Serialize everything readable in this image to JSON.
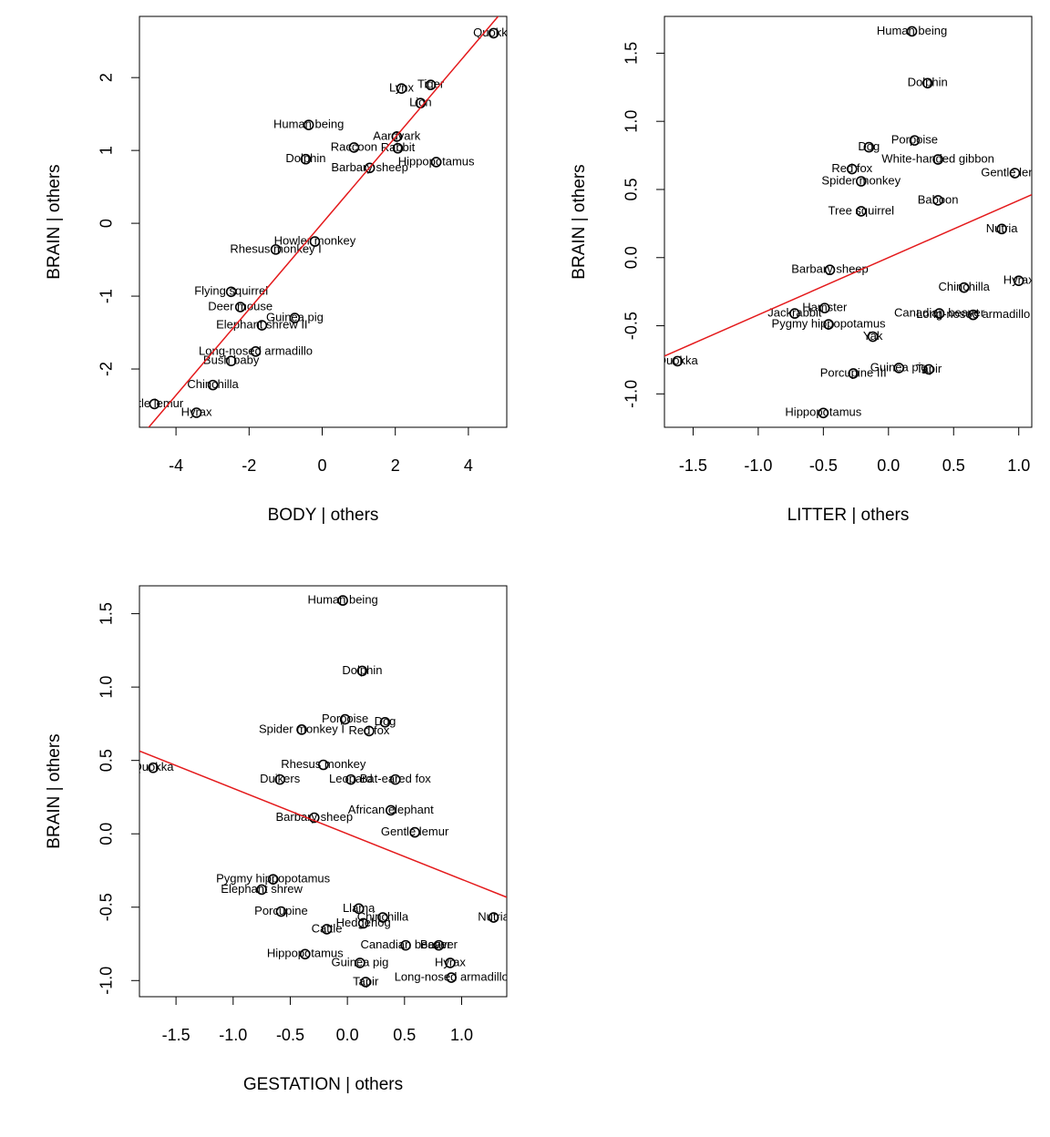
{
  "chart_data": [
    {
      "type": "scatter",
      "x_label": "BODY | others",
      "y_label": "BRAIN | others",
      "xlim": [
        -5.0,
        5.05
      ],
      "ylim": [
        -2.8,
        2.84
      ],
      "xticks": [
        -4,
        -2,
        0,
        2,
        4
      ],
      "yticks": [
        -2,
        -1,
        0,
        1,
        2
      ],
      "fit": {
        "slope": 0.59,
        "intercept": 0,
        "color": "#e41a1c"
      },
      "labels": [
        "Quokka",
        "Lynx",
        "Tiger",
        "Lion",
        "Human being",
        "Aardvark",
        "Raccoon",
        "Rabbit",
        "Dolphin",
        "Hippopotamus",
        "Barbary sheep",
        "Howler monkey",
        "Rhesus monkey I",
        "Flying squirrel",
        "Deer mouse",
        "Guinea pig",
        "Elephant shrew II",
        "Long-nosed armadillo",
        "Bush baby",
        "Chinchilla",
        "Little lemur",
        "Hyrax"
      ],
      "x": [
        4.69,
        2.17,
        2.97,
        2.69,
        -0.37,
        2.04,
        0.87,
        2.07,
        -0.45,
        3.12,
        1.3,
        -0.2,
        -1.27,
        -2.49,
        -2.24,
        -0.75,
        -1.65,
        -1.82,
        -2.49,
        -2.99,
        -4.59,
        -3.44
      ],
      "y": [
        2.61,
        1.85,
        1.9,
        1.65,
        1.35,
        1.19,
        1.04,
        1.03,
        0.88,
        0.84,
        0.76,
        -0.25,
        -0.36,
        -0.94,
        -1.15,
        -1.3,
        -1.4,
        -1.76,
        -1.89,
        -2.22,
        -2.48,
        -2.6
      ]
    },
    {
      "type": "scatter",
      "x_label": "LITTER | others",
      "y_label": "BRAIN | others",
      "xlim": [
        -1.72,
        1.1
      ],
      "ylim": [
        -1.245,
        1.77
      ],
      "xticks": [
        -1.5,
        {
          "value": -1,
          "label": "-1.0"
        },
        -0.5,
        {
          "value": 0,
          "label": "0.0"
        },
        0.5,
        {
          "value": 1,
          "label": "1.0"
        }
      ],
      "yticks": [
        {
          "value": -1,
          "label": "-1.0"
        },
        -0.5,
        {
          "value": 0,
          "label": "0.0"
        },
        0.5,
        {
          "value": 1,
          "label": "1.0"
        },
        1.5
      ],
      "fit": {
        "slope": 0.42,
        "intercept": 0,
        "color": "#e41a1c"
      },
      "labels": [
        "Human being",
        "Dolphin",
        "Porpoise",
        "Dog",
        "White-handed gibbon",
        "Gentle lemur",
        "Red fox",
        "Spider monkey",
        "Baboon",
        "Tree squirrel",
        "Nutria",
        "Barbary sheep",
        "Hyrax",
        "Chinchilla",
        "Hamster",
        "Jackrabbit",
        "Canadian beaver",
        "Long-nosed armadillo",
        "Pygmy hippopotamus",
        "Yak",
        "Quokka",
        "Guinea pig",
        "Tapir",
        "Porcupine III",
        "Hippopotamus"
      ],
      "x": [
        0.18,
        0.3,
        0.2,
        -0.15,
        0.38,
        0.97,
        -0.28,
        -0.21,
        0.38,
        -0.21,
        0.87,
        -0.45,
        1.0,
        0.58,
        -0.49,
        -0.72,
        0.39,
        0.65,
        -0.46,
        -0.12,
        -1.62,
        0.08,
        0.31,
        -0.27,
        -0.5
      ],
      "y": [
        1.66,
        1.28,
        0.86,
        0.81,
        0.72,
        0.62,
        0.65,
        0.56,
        0.42,
        0.34,
        0.21,
        -0.09,
        -0.17,
        -0.22,
        -0.37,
        -0.41,
        -0.41,
        -0.42,
        -0.49,
        -0.58,
        -0.76,
        -0.81,
        -0.82,
        -0.85,
        -1.14
      ]
    },
    {
      "type": "scatter",
      "x_label": "GESTATION | others",
      "y_label": "BRAIN | others",
      "xlim": [
        -1.82,
        1.395
      ],
      "ylim": [
        -1.11,
        1.69
      ],
      "xticks": [
        -1.5,
        {
          "value": -1,
          "label": "-1.0"
        },
        -0.5,
        {
          "value": 0,
          "label": "0.0"
        },
        0.5,
        {
          "value": 1,
          "label": "1.0"
        }
      ],
      "yticks": [
        {
          "value": -1,
          "label": "-1.0"
        },
        -0.5,
        {
          "value": 0,
          "label": "0.0"
        },
        0.5,
        {
          "value": 1,
          "label": "1.0"
        },
        1.5
      ],
      "fit": {
        "slope": -0.31,
        "intercept": 0,
        "color": "#e41a1c"
      },
      "labels": [
        "Human being",
        "Dolphin",
        "Porpoise",
        "Dog",
        "Spider monkey I",
        "Red fox",
        "Quokka",
        "Rhesus monkey",
        "Duikers",
        "Leopard",
        "Bat-eared fox",
        "African elephant",
        "Barbary sheep",
        "Gentle lemur",
        "Pygmy hippopotamus",
        "Elephant shrew",
        "Llama",
        "Porcupine",
        "Chinchilla",
        "Nutria",
        "Hedgehog",
        "Cattle",
        "Canadian beaver",
        "Beaver",
        "Hippopotamus",
        "Guinea pig",
        "Hyrax",
        "Long-nosed armadillo",
        "Tapir"
      ],
      "x": [
        -0.04,
        0.13,
        -0.02,
        0.33,
        -0.4,
        0.19,
        -1.7,
        -0.21,
        -0.59,
        0.03,
        0.42,
        0.38,
        -0.29,
        0.59,
        -0.65,
        -0.75,
        0.1,
        -0.58,
        0.31,
        1.28,
        0.14,
        -0.18,
        0.51,
        0.8,
        -0.37,
        0.11,
        0.9,
        0.91,
        0.16
      ],
      "y": [
        1.59,
        1.11,
        0.78,
        0.76,
        0.71,
        0.7,
        0.45,
        0.47,
        0.37,
        0.37,
        0.37,
        0.16,
        0.11,
        0.01,
        -0.31,
        -0.38,
        -0.51,
        -0.53,
        -0.57,
        -0.57,
        -0.61,
        -0.65,
        -0.76,
        -0.76,
        -0.82,
        -0.88,
        -0.88,
        -0.98,
        -1.01
      ]
    }
  ]
}
